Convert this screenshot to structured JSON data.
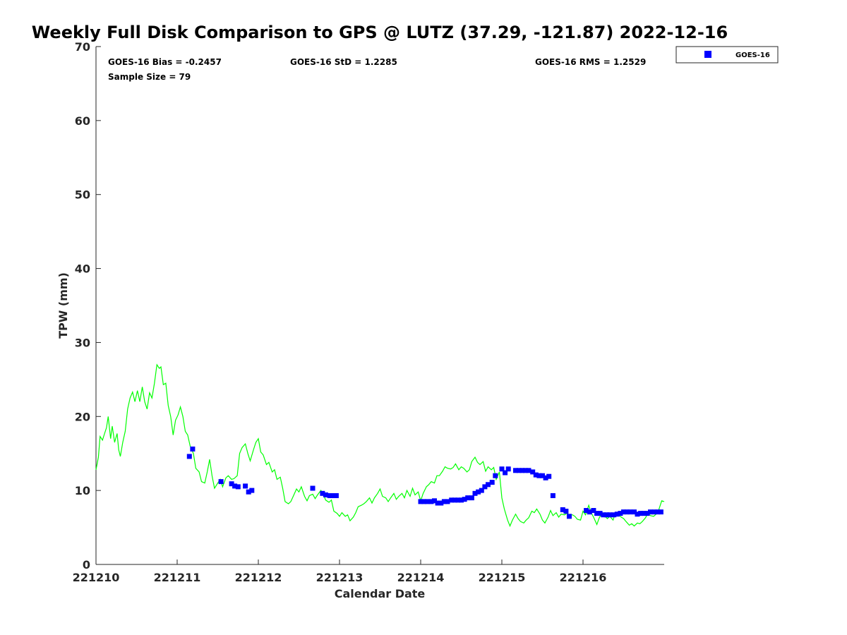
{
  "chart_data": {
    "type": "scatter",
    "title": "Weekly Full Disk Comparison to GPS @ LUTZ (37.29, -121.87) 2022-12-16",
    "xlabel": "Calendar Date",
    "ylabel": "TPW (mm)",
    "x_tick_labels": [
      "221210",
      "221211",
      "221212",
      "221213",
      "221214",
      "221215",
      "221216"
    ],
    "y_ticks": [
      0,
      10,
      20,
      30,
      40,
      50,
      60,
      70
    ],
    "xlim": [
      0,
      7
    ],
    "ylim": [
      0,
      70
    ],
    "x_units": "days since 221210",
    "grid": false,
    "legend_position": "outside top-right",
    "stats": {
      "bias": "GOES-16 Bias = -0.2457",
      "std": "GOES-16 StD = 1.2285",
      "rms": "GOES-16 RMS = 1.2529",
      "sample": "Sample Size = 79"
    },
    "series": [
      {
        "name": "GOES-16",
        "kind": "scatter",
        "marker": "square",
        "color": "#0000ff",
        "points": [
          [
            1.15,
            14.6
          ],
          [
            1.19,
            15.6
          ],
          [
            1.54,
            11.2
          ],
          [
            1.67,
            10.9
          ],
          [
            1.71,
            10.6
          ],
          [
            1.75,
            10.5
          ],
          [
            1.84,
            10.6
          ],
          [
            1.88,
            9.8
          ],
          [
            1.92,
            10.0
          ],
          [
            2.67,
            10.3
          ],
          [
            2.79,
            9.6
          ],
          [
            2.83,
            9.4
          ],
          [
            2.88,
            9.3
          ],
          [
            2.92,
            9.3
          ],
          [
            2.96,
            9.3
          ],
          [
            4.0,
            8.5
          ],
          [
            4.04,
            8.5
          ],
          [
            4.08,
            8.5
          ],
          [
            4.13,
            8.5
          ],
          [
            4.17,
            8.6
          ],
          [
            4.21,
            8.3
          ],
          [
            4.25,
            8.3
          ],
          [
            4.29,
            8.5
          ],
          [
            4.33,
            8.5
          ],
          [
            4.38,
            8.7
          ],
          [
            4.42,
            8.7
          ],
          [
            4.46,
            8.7
          ],
          [
            4.5,
            8.7
          ],
          [
            4.54,
            8.8
          ],
          [
            4.58,
            9.0
          ],
          [
            4.63,
            9.0
          ],
          [
            4.67,
            9.6
          ],
          [
            4.71,
            9.8
          ],
          [
            4.75,
            10.0
          ],
          [
            4.79,
            10.5
          ],
          [
            4.83,
            10.8
          ],
          [
            4.88,
            11.1
          ],
          [
            4.92,
            12.0
          ],
          [
            5.0,
            12.9
          ],
          [
            5.04,
            12.4
          ],
          [
            5.08,
            12.9
          ],
          [
            5.17,
            12.7
          ],
          [
            5.21,
            12.7
          ],
          [
            5.25,
            12.7
          ],
          [
            5.29,
            12.7
          ],
          [
            5.33,
            12.7
          ],
          [
            5.38,
            12.5
          ],
          [
            5.42,
            12.1
          ],
          [
            5.46,
            12.0
          ],
          [
            5.5,
            12.0
          ],
          [
            5.54,
            11.7
          ],
          [
            5.58,
            11.9
          ],
          [
            5.63,
            9.3
          ],
          [
            5.75,
            7.4
          ],
          [
            5.79,
            7.2
          ],
          [
            5.83,
            6.5
          ],
          [
            6.04,
            7.3
          ],
          [
            6.08,
            7.1
          ],
          [
            6.13,
            7.3
          ],
          [
            6.17,
            6.9
          ],
          [
            6.21,
            6.9
          ],
          [
            6.25,
            6.7
          ],
          [
            6.29,
            6.7
          ],
          [
            6.33,
            6.7
          ],
          [
            6.38,
            6.7
          ],
          [
            6.42,
            6.8
          ],
          [
            6.46,
            6.9
          ],
          [
            6.5,
            7.1
          ],
          [
            6.54,
            7.1
          ],
          [
            6.58,
            7.1
          ],
          [
            6.63,
            7.1
          ],
          [
            6.67,
            6.8
          ],
          [
            6.71,
            6.9
          ],
          [
            6.75,
            6.9
          ],
          [
            6.79,
            6.9
          ],
          [
            6.83,
            7.1
          ],
          [
            6.88,
            7.1
          ],
          [
            6.92,
            7.1
          ],
          [
            6.96,
            7.1
          ]
        ]
      },
      {
        "name": "",
        "kind": "line",
        "color": "#00ff00",
        "points": [
          [
            0.0,
            12.8
          ],
          [
            0.03,
            14.5
          ],
          [
            0.05,
            17.3
          ],
          [
            0.08,
            16.8
          ],
          [
            0.1,
            17.5
          ],
          [
            0.13,
            18.5
          ],
          [
            0.15,
            20.0
          ],
          [
            0.18,
            17.0
          ],
          [
            0.2,
            18.7
          ],
          [
            0.23,
            16.5
          ],
          [
            0.26,
            17.7
          ],
          [
            0.28,
            15.5
          ],
          [
            0.3,
            14.6
          ],
          [
            0.33,
            16.5
          ],
          [
            0.36,
            18.0
          ],
          [
            0.39,
            21.0
          ],
          [
            0.42,
            22.5
          ],
          [
            0.45,
            23.3
          ],
          [
            0.48,
            22.0
          ],
          [
            0.51,
            23.5
          ],
          [
            0.54,
            22.0
          ],
          [
            0.57,
            24.0
          ],
          [
            0.6,
            22.0
          ],
          [
            0.63,
            21.0
          ],
          [
            0.66,
            23.2
          ],
          [
            0.69,
            22.5
          ],
          [
            0.72,
            24.5
          ],
          [
            0.75,
            27.0
          ],
          [
            0.78,
            26.5
          ],
          [
            0.8,
            26.7
          ],
          [
            0.83,
            24.3
          ],
          [
            0.86,
            24.5
          ],
          [
            0.89,
            21.5
          ],
          [
            0.92,
            20.0
          ],
          [
            0.95,
            17.5
          ],
          [
            0.98,
            19.5
          ],
          [
            1.01,
            20.2
          ],
          [
            1.04,
            21.3
          ],
          [
            1.07,
            20.0
          ],
          [
            1.1,
            18.0
          ],
          [
            1.13,
            17.5
          ],
          [
            1.16,
            16.0
          ],
          [
            1.2,
            15.0
          ],
          [
            1.23,
            13.0
          ],
          [
            1.27,
            12.5
          ],
          [
            1.3,
            11.2
          ],
          [
            1.34,
            11.0
          ],
          [
            1.37,
            12.5
          ],
          [
            1.4,
            14.2
          ],
          [
            1.43,
            12.0
          ],
          [
            1.46,
            10.3
          ],
          [
            1.5,
            11.0
          ],
          [
            1.53,
            11.5
          ],
          [
            1.56,
            10.5
          ],
          [
            1.6,
            11.7
          ],
          [
            1.63,
            12.0
          ],
          [
            1.67,
            11.5
          ],
          [
            1.7,
            11.6
          ],
          [
            1.74,
            12.0
          ],
          [
            1.77,
            15.0
          ],
          [
            1.8,
            15.8
          ],
          [
            1.84,
            16.3
          ],
          [
            1.87,
            15.0
          ],
          [
            1.9,
            14.0
          ],
          [
            1.94,
            15.5
          ],
          [
            1.97,
            16.5
          ],
          [
            2.0,
            17.0
          ],
          [
            2.03,
            15.2
          ],
          [
            2.06,
            14.8
          ],
          [
            2.1,
            13.5
          ],
          [
            2.13,
            13.8
          ],
          [
            2.17,
            12.5
          ],
          [
            2.2,
            12.8
          ],
          [
            2.23,
            11.5
          ],
          [
            2.27,
            11.8
          ],
          [
            2.3,
            10.3
          ],
          [
            2.33,
            8.5
          ],
          [
            2.37,
            8.2
          ],
          [
            2.4,
            8.5
          ],
          [
            2.43,
            9.2
          ],
          [
            2.47,
            10.2
          ],
          [
            2.5,
            9.8
          ],
          [
            2.53,
            10.5
          ],
          [
            2.57,
            9.2
          ],
          [
            2.6,
            8.6
          ],
          [
            2.63,
            9.3
          ],
          [
            2.67,
            9.5
          ],
          [
            2.7,
            8.9
          ],
          [
            2.73,
            9.4
          ],
          [
            2.77,
            10.0
          ],
          [
            2.8,
            9.5
          ],
          [
            2.83,
            8.7
          ],
          [
            2.87,
            8.4
          ],
          [
            2.9,
            8.7
          ],
          [
            2.93,
            7.2
          ],
          [
            2.97,
            6.9
          ],
          [
            3.0,
            6.5
          ],
          [
            3.03,
            7.0
          ],
          [
            3.07,
            6.5
          ],
          [
            3.1,
            6.7
          ],
          [
            3.13,
            5.9
          ],
          [
            3.17,
            6.4
          ],
          [
            3.2,
            7.0
          ],
          [
            3.23,
            7.8
          ],
          [
            3.27,
            8.0
          ],
          [
            3.3,
            8.2
          ],
          [
            3.33,
            8.5
          ],
          [
            3.37,
            9.0
          ],
          [
            3.4,
            8.3
          ],
          [
            3.43,
            9.0
          ],
          [
            3.47,
            9.6
          ],
          [
            3.5,
            10.2
          ],
          [
            3.53,
            9.2
          ],
          [
            3.57,
            9.0
          ],
          [
            3.6,
            8.5
          ],
          [
            3.63,
            9.0
          ],
          [
            3.67,
            9.6
          ],
          [
            3.7,
            8.8
          ],
          [
            3.73,
            9.2
          ],
          [
            3.77,
            9.6
          ],
          [
            3.8,
            9.0
          ],
          [
            3.83,
            10.0
          ],
          [
            3.87,
            9.2
          ],
          [
            3.9,
            10.3
          ],
          [
            3.93,
            9.4
          ],
          [
            3.97,
            9.8
          ],
          [
            4.0,
            8.6
          ],
          [
            4.03,
            9.6
          ],
          [
            4.07,
            10.5
          ],
          [
            4.1,
            10.8
          ],
          [
            4.13,
            11.2
          ],
          [
            4.17,
            11.0
          ],
          [
            4.2,
            12.0
          ],
          [
            4.23,
            12.0
          ],
          [
            4.27,
            12.6
          ],
          [
            4.3,
            13.2
          ],
          [
            4.33,
            13.0
          ],
          [
            4.37,
            12.9
          ],
          [
            4.4,
            13.1
          ],
          [
            4.43,
            13.6
          ],
          [
            4.47,
            12.8
          ],
          [
            4.5,
            13.2
          ],
          [
            4.53,
            13.0
          ],
          [
            4.57,
            12.5
          ],
          [
            4.6,
            12.8
          ],
          [
            4.63,
            13.9
          ],
          [
            4.67,
            14.5
          ],
          [
            4.7,
            13.8
          ],
          [
            4.73,
            13.5
          ],
          [
            4.77,
            13.9
          ],
          [
            4.8,
            12.6
          ],
          [
            4.83,
            13.2
          ],
          [
            4.87,
            12.8
          ],
          [
            4.9,
            13.1
          ],
          [
            4.93,
            11.5
          ],
          [
            4.97,
            12.5
          ],
          [
            5.0,
            9.0
          ],
          [
            5.03,
            7.5
          ],
          [
            5.07,
            6.0
          ],
          [
            5.1,
            5.2
          ],
          [
            5.13,
            6.0
          ],
          [
            5.17,
            6.8
          ],
          [
            5.2,
            6.2
          ],
          [
            5.23,
            5.8
          ],
          [
            5.27,
            5.6
          ],
          [
            5.3,
            6.0
          ],
          [
            5.33,
            6.3
          ],
          [
            5.37,
            7.2
          ],
          [
            5.4,
            7.0
          ],
          [
            5.43,
            7.5
          ],
          [
            5.47,
            6.8
          ],
          [
            5.5,
            6.0
          ],
          [
            5.53,
            5.6
          ],
          [
            5.57,
            6.4
          ],
          [
            5.6,
            7.3
          ],
          [
            5.63,
            6.6
          ],
          [
            5.67,
            7.0
          ],
          [
            5.7,
            6.4
          ],
          [
            5.73,
            6.8
          ],
          [
            5.77,
            6.7
          ],
          [
            5.8,
            6.9
          ],
          [
            5.83,
            6.7
          ],
          [
            5.87,
            6.7
          ],
          [
            5.9,
            6.5
          ],
          [
            5.93,
            6.1
          ],
          [
            5.97,
            6.0
          ],
          [
            6.0,
            7.2
          ],
          [
            6.03,
            6.7
          ],
          [
            6.07,
            8.0
          ],
          [
            6.1,
            7.0
          ],
          [
            6.13,
            6.4
          ],
          [
            6.17,
            5.4
          ],
          [
            6.2,
            6.3
          ],
          [
            6.23,
            6.9
          ],
          [
            6.27,
            6.5
          ],
          [
            6.3,
            6.2
          ],
          [
            6.33,
            6.5
          ],
          [
            6.37,
            6.0
          ],
          [
            6.4,
            7.0
          ],
          [
            6.43,
            6.8
          ],
          [
            6.47,
            6.4
          ],
          [
            6.5,
            6.2
          ],
          [
            6.53,
            5.8
          ],
          [
            6.57,
            5.3
          ],
          [
            6.6,
            5.5
          ],
          [
            6.63,
            5.2
          ],
          [
            6.67,
            5.6
          ],
          [
            6.7,
            5.5
          ],
          [
            6.73,
            5.8
          ],
          [
            6.77,
            6.3
          ],
          [
            6.8,
            6.9
          ],
          [
            6.83,
            6.6
          ],
          [
            6.87,
            6.5
          ],
          [
            6.9,
            6.8
          ],
          [
            6.93,
            7.3
          ],
          [
            6.97,
            8.6
          ],
          [
            7.0,
            8.5
          ]
        ]
      }
    ]
  }
}
